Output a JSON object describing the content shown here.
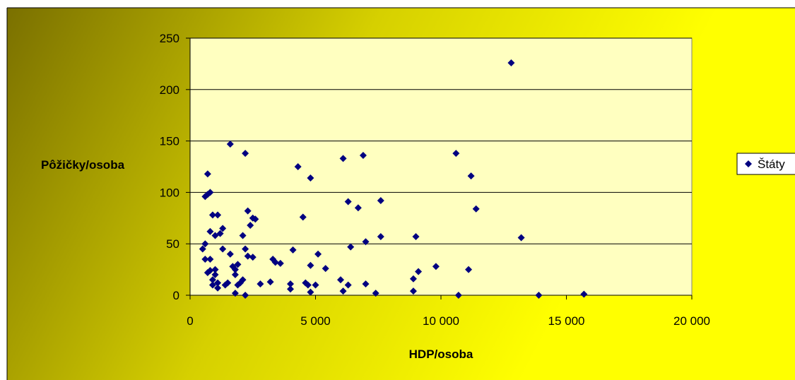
{
  "chart_data": {
    "type": "scatter",
    "title": "",
    "xlabel": "HDP/osoba",
    "ylabel": "Pôžičky/osoba",
    "xlim": [
      0,
      20000
    ],
    "ylim": [
      0,
      250
    ],
    "xticks": [
      0,
      5000,
      10000,
      15000,
      20000
    ],
    "xtick_labels": [
      "0",
      "5 000",
      "10 000",
      "15 000",
      "20 000"
    ],
    "yticks": [
      0,
      50,
      100,
      150,
      200,
      250
    ],
    "ytick_labels": [
      "0",
      "50",
      "100",
      "150",
      "200",
      "250"
    ],
    "grid": "horizontal",
    "legend_position": "right",
    "colors": {
      "marker": "#000080",
      "plot_area": "#ffffc0",
      "gridline": "#000000",
      "background_gradient": [
        "#7a7000",
        "#d6d000",
        "#ffff00"
      ]
    },
    "series": [
      {
        "name": "Štáty",
        "marker": "diamond",
        "points": [
          [
            500,
            45
          ],
          [
            600,
            50
          ],
          [
            700,
            118
          ],
          [
            600,
            96
          ],
          [
            800,
            100
          ],
          [
            700,
            98
          ],
          [
            900,
            78
          ],
          [
            1100,
            78
          ],
          [
            800,
            62
          ],
          [
            1000,
            58
          ],
          [
            1200,
            60
          ],
          [
            1300,
            65
          ],
          [
            600,
            35
          ],
          [
            800,
            35
          ],
          [
            700,
            22
          ],
          [
            800,
            24
          ],
          [
            900,
            15
          ],
          [
            1000,
            20
          ],
          [
            1000,
            25
          ],
          [
            1100,
            12
          ],
          [
            900,
            10
          ],
          [
            1100,
            7
          ],
          [
            1300,
            45
          ],
          [
            1400,
            10
          ],
          [
            1500,
            12
          ],
          [
            1600,
            147
          ],
          [
            1600,
            40
          ],
          [
            1700,
            28
          ],
          [
            1800,
            25
          ],
          [
            1800,
            20
          ],
          [
            1900,
            30
          ],
          [
            1800,
            2
          ],
          [
            1900,
            10
          ],
          [
            2000,
            12
          ],
          [
            2100,
            15
          ],
          [
            2100,
            58
          ],
          [
            2200,
            138
          ],
          [
            2300,
            82
          ],
          [
            2400,
            68
          ],
          [
            2500,
            75
          ],
          [
            2600,
            74
          ],
          [
            2200,
            45
          ],
          [
            2300,
            38
          ],
          [
            2500,
            37
          ],
          [
            2200,
            0
          ],
          [
            2800,
            11
          ],
          [
            3200,
            13
          ],
          [
            3300,
            35
          ],
          [
            3400,
            32
          ],
          [
            3600,
            31
          ],
          [
            4000,
            6
          ],
          [
            4000,
            11
          ],
          [
            4100,
            44
          ],
          [
            4300,
            125
          ],
          [
            4500,
            76
          ],
          [
            4600,
            12
          ],
          [
            4800,
            3
          ],
          [
            4700,
            10
          ],
          [
            4800,
            114
          ],
          [
            4800,
            29
          ],
          [
            5000,
            10
          ],
          [
            5100,
            40
          ],
          [
            5400,
            26
          ],
          [
            6000,
            15
          ],
          [
            6100,
            133
          ],
          [
            6100,
            4
          ],
          [
            6300,
            10
          ],
          [
            6300,
            91
          ],
          [
            6400,
            47
          ],
          [
            6700,
            85
          ],
          [
            6900,
            136
          ],
          [
            7000,
            52
          ],
          [
            7000,
            11
          ],
          [
            7400,
            2
          ],
          [
            7600,
            92
          ],
          [
            7600,
            57
          ],
          [
            8900,
            16
          ],
          [
            8900,
            4
          ],
          [
            9000,
            57
          ],
          [
            9100,
            23
          ],
          [
            9800,
            28
          ],
          [
            10600,
            138
          ],
          [
            10700,
            0
          ],
          [
            11100,
            25
          ],
          [
            11200,
            116
          ],
          [
            11400,
            84
          ],
          [
            12800,
            226
          ],
          [
            13200,
            56
          ],
          [
            13900,
            0
          ],
          [
            15700,
            1
          ]
        ]
      }
    ]
  }
}
